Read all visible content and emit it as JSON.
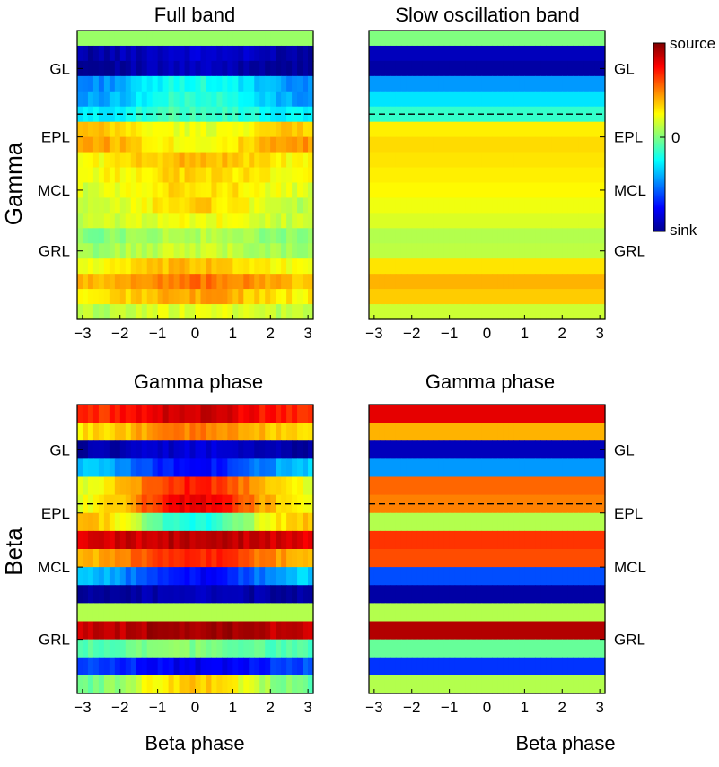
{
  "figure": {
    "row_labels": [
      "Gamma",
      "Beta"
    ],
    "top_titles": [
      "Full band",
      "Slow oscillation band"
    ],
    "bottom_titles": [
      "Gamma phase",
      "Gamma phase"
    ],
    "bottom_xlabels": [
      "Beta phase",
      "Beta phase"
    ],
    "colorbar": {
      "top_label": "source",
      "mid_label": "0",
      "bottom_label": "sink"
    }
  },
  "chart_data": [
    {
      "type": "heatmap",
      "panel": "top-left",
      "title": "Full band",
      "row_label": "Gamma",
      "xlabel": "",
      "x_range": [
        -3.14,
        3.14
      ],
      "x_ticks": [
        -3,
        -2,
        -1,
        0,
        1,
        2,
        3
      ],
      "layer_labels": [
        {
          "label": "GL",
          "row": 2
        },
        {
          "label": "EPL",
          "row": 6.5
        },
        {
          "label": "MCL",
          "row": 10
        },
        {
          "label": "GRL",
          "row": 14
        }
      ],
      "boundary_after_row": 5,
      "value_range": [
        -1,
        1
      ],
      "rows": [
        {
          "base": 0.05,
          "mod": 0.0
        },
        {
          "base": -0.9,
          "mod": 0.05
        },
        {
          "base": -0.95,
          "mod": 0.05
        },
        {
          "base": -0.35,
          "mod": 0.15
        },
        {
          "base": -0.3,
          "mod": 0.15
        },
        {
          "base": -0.2,
          "mod": 0.1
        },
        {
          "base": 0.28,
          "mod": -0.08
        },
        {
          "base": 0.35,
          "mod": -0.1
        },
        {
          "base": 0.32,
          "mod": 0.08
        },
        {
          "base": 0.28,
          "mod": 0.05
        },
        {
          "base": 0.25,
          "mod": 0.08
        },
        {
          "base": 0.22,
          "mod": 0.12
        },
        {
          "base": 0.18,
          "mod": 0.05
        },
        {
          "base": 0.05,
          "mod": 0.05
        },
        {
          "base": 0.1,
          "mod": 0.05
        },
        {
          "base": 0.3,
          "mod": 0.08
        },
        {
          "base": 0.45,
          "mod": 0.08
        },
        {
          "base": 0.35,
          "mod": 0.08
        },
        {
          "base": 0.15,
          "mod": 0.05
        }
      ]
    },
    {
      "type": "heatmap",
      "panel": "top-right",
      "title": "Slow oscillation band",
      "row_label": "",
      "xlabel": "",
      "x_range": [
        -3.14,
        3.14
      ],
      "x_ticks": [
        -3,
        -2,
        -1,
        0,
        1,
        2,
        3
      ],
      "layer_labels": [
        {
          "label": "GL",
          "row": 2
        },
        {
          "label": "EPL",
          "row": 6.5
        },
        {
          "label": "MCL",
          "row": 10
        },
        {
          "label": "GRL",
          "row": 14
        }
      ],
      "boundary_after_row": 5,
      "value_range": [
        -1,
        1
      ],
      "rows": [
        {
          "base": 0.0,
          "mod": 0.0
        },
        {
          "base": -0.9,
          "mod": 0.0
        },
        {
          "base": -0.95,
          "mod": 0.0
        },
        {
          "base": -0.45,
          "mod": 0.0
        },
        {
          "base": -0.3,
          "mod": 0.0
        },
        {
          "base": -0.15,
          "mod": 0.0
        },
        {
          "base": 0.28,
          "mod": 0.0
        },
        {
          "base": 0.32,
          "mod": 0.0
        },
        {
          "base": 0.3,
          "mod": 0.0
        },
        {
          "base": 0.28,
          "mod": 0.0
        },
        {
          "base": 0.26,
          "mod": 0.0
        },
        {
          "base": 0.22,
          "mod": 0.0
        },
        {
          "base": 0.18,
          "mod": 0.0
        },
        {
          "base": 0.1,
          "mod": 0.0
        },
        {
          "base": 0.12,
          "mod": 0.0
        },
        {
          "base": 0.3,
          "mod": 0.0
        },
        {
          "base": 0.4,
          "mod": 0.0
        },
        {
          "base": 0.35,
          "mod": 0.0
        },
        {
          "base": 0.15,
          "mod": 0.0
        }
      ]
    },
    {
      "type": "heatmap",
      "panel": "bottom-left",
      "title": "Gamma phase",
      "row_label": "Beta",
      "xlabel": "Beta phase",
      "x_range": [
        -3.14,
        3.14
      ],
      "x_ticks": [
        -3,
        -2,
        -1,
        0,
        1,
        2,
        3
      ],
      "layer_labels": [
        {
          "label": "GL",
          "row": 2
        },
        {
          "label": "EPL",
          "row": 5.5
        },
        {
          "label": "MCL",
          "row": 8.5
        },
        {
          "label": "GRL",
          "row": 12.5
        }
      ],
      "boundary_after_row": 5,
      "value_range": [
        -1,
        1
      ],
      "rows": [
        {
          "base": 0.75,
          "mod": 0.1
        },
        {
          "base": 0.4,
          "mod": 0.1
        },
        {
          "base": -0.9,
          "mod": 0.05
        },
        {
          "base": -0.55,
          "mod": -0.2
        },
        {
          "base": 0.45,
          "mod": 0.25
        },
        {
          "base": 0.5,
          "mod": 0.3
        },
        {
          "base": 0.1,
          "mod": -0.3
        },
        {
          "base": 0.85,
          "mod": 0.05
        },
        {
          "base": 0.55,
          "mod": 0.15
        },
        {
          "base": -0.55,
          "mod": -0.2
        },
        {
          "base": -0.95,
          "mod": 0.03
        },
        {
          "base": 0.1,
          "mod": 0.0
        },
        {
          "base": 0.9,
          "mod": 0.05
        },
        {
          "base": -0.05,
          "mod": 0.05
        },
        {
          "base": -0.7,
          "mod": -0.1
        },
        {
          "base": 0.15,
          "mod": 0.2
        }
      ]
    },
    {
      "type": "heatmap",
      "panel": "bottom-right",
      "title": "Gamma phase",
      "row_label": "",
      "xlabel": "Beta phase",
      "x_range": [
        -3.14,
        3.14
      ],
      "x_ticks": [
        -3,
        -2,
        -1,
        0,
        1,
        2,
        3
      ],
      "layer_labels": [
        {
          "label": "GL",
          "row": 2
        },
        {
          "label": "EPL",
          "row": 5.5
        },
        {
          "label": "MCL",
          "row": 8.5
        },
        {
          "label": "GRL",
          "row": 12.5
        }
      ],
      "boundary_after_row": 5,
      "value_range": [
        -1,
        1
      ],
      "rows": [
        {
          "base": 0.8,
          "mod": 0.0
        },
        {
          "base": 0.4,
          "mod": 0.0
        },
        {
          "base": -0.9,
          "mod": 0.0
        },
        {
          "base": -0.45,
          "mod": 0.0
        },
        {
          "base": 0.55,
          "mod": 0.0
        },
        {
          "base": 0.5,
          "mod": 0.0
        },
        {
          "base": 0.1,
          "mod": 0.0
        },
        {
          "base": 0.65,
          "mod": 0.0
        },
        {
          "base": 0.6,
          "mod": 0.0
        },
        {
          "base": -0.6,
          "mod": 0.0
        },
        {
          "base": -0.95,
          "mod": 0.0
        },
        {
          "base": 0.1,
          "mod": 0.0
        },
        {
          "base": 0.9,
          "mod": 0.0
        },
        {
          "base": -0.05,
          "mod": 0.0
        },
        {
          "base": -0.65,
          "mod": 0.0
        },
        {
          "base": 0.1,
          "mod": 0.0
        }
      ]
    }
  ]
}
